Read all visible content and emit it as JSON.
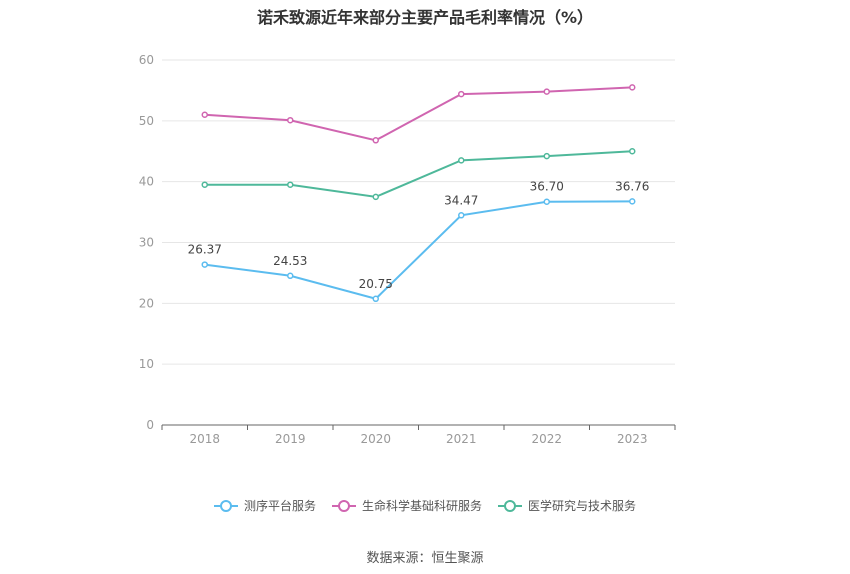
{
  "chart_data": {
    "type": "line",
    "title": "诺禾致源近年来部分主要产品毛利率情况（%）",
    "categories": [
      "2018",
      "2019",
      "2020",
      "2021",
      "2022",
      "2023"
    ],
    "ylim": [
      0,
      60
    ],
    "yticks": [
      0,
      10,
      20,
      30,
      40,
      50,
      60
    ],
    "grid": true,
    "legend_position": "bottom",
    "series": [
      {
        "name": "测序平台服务",
        "color": "#5bbcef",
        "values": [
          26.37,
          24.53,
          20.75,
          34.47,
          36.7,
          36.76
        ],
        "labels": [
          "26.37",
          "24.53",
          "20.75",
          "34.47",
          "36.70",
          "36.76"
        ]
      },
      {
        "name": "生命科学基础科研服务",
        "color": "#d065b0",
        "values": [
          51.0,
          50.1,
          46.8,
          54.4,
          54.8,
          55.5
        ]
      },
      {
        "name": "医学研究与技术服务",
        "color": "#4eb89a",
        "values": [
          39.5,
          39.5,
          37.5,
          43.5,
          44.2,
          45.0
        ]
      }
    ]
  },
  "source": "数据来源：恒生聚源"
}
